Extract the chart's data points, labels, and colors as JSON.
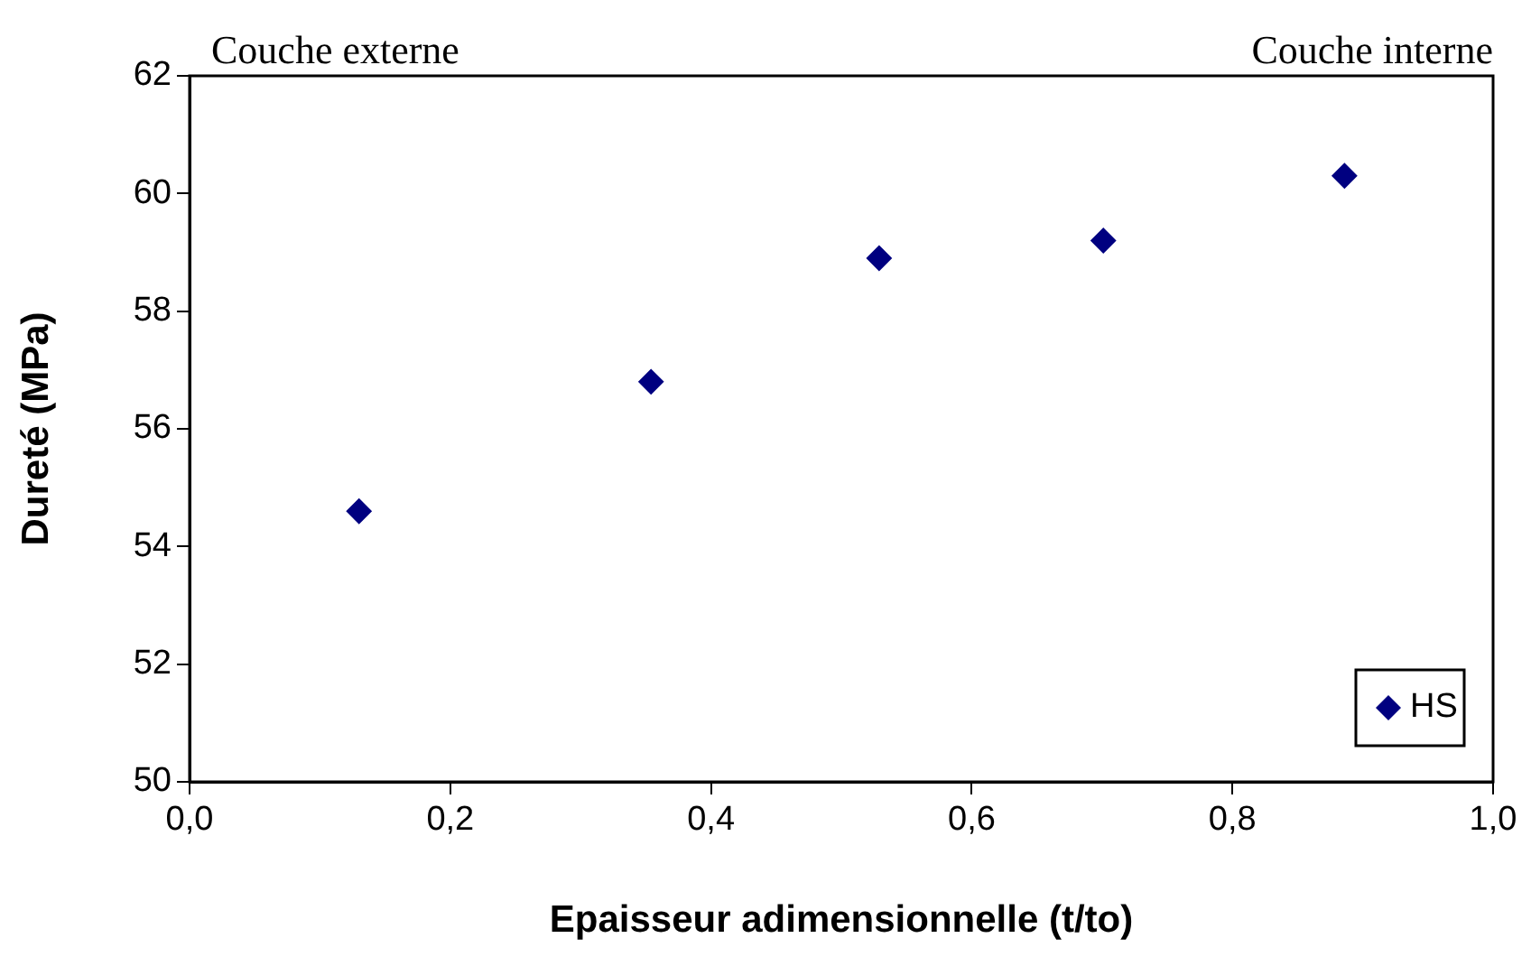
{
  "chart_data": {
    "type": "scatter",
    "xlabel": "Epaisseur adimensionnelle (t/to)",
    "ylabel": "Dureté (MPa)",
    "annotations": [
      "Couche externe",
      "Couche interne"
    ],
    "x": [
      0.13,
      0.354,
      0.529,
      0.701,
      0.886
    ],
    "series": [
      {
        "name": "HS",
        "color": "#000080",
        "values": [
          54.6,
          56.8,
          58.9,
          59.2,
          60.3
        ]
      }
    ],
    "xlim": [
      0,
      1
    ],
    "xticks": [
      {
        "value": 0,
        "label": "0,0"
      },
      {
        "value": 0.2,
        "label": "0,2"
      },
      {
        "value": 0.4,
        "label": "0,4"
      },
      {
        "value": 0.6,
        "label": "0,6"
      },
      {
        "value": 0.8,
        "label": "0,8"
      },
      {
        "value": 1,
        "label": "1,0"
      }
    ],
    "ylim": [
      50,
      62
    ],
    "yticks": [
      50,
      52,
      54,
      56,
      58,
      60,
      62
    ],
    "grid": false,
    "legend": "bottom right",
    "marker": "diamond"
  }
}
